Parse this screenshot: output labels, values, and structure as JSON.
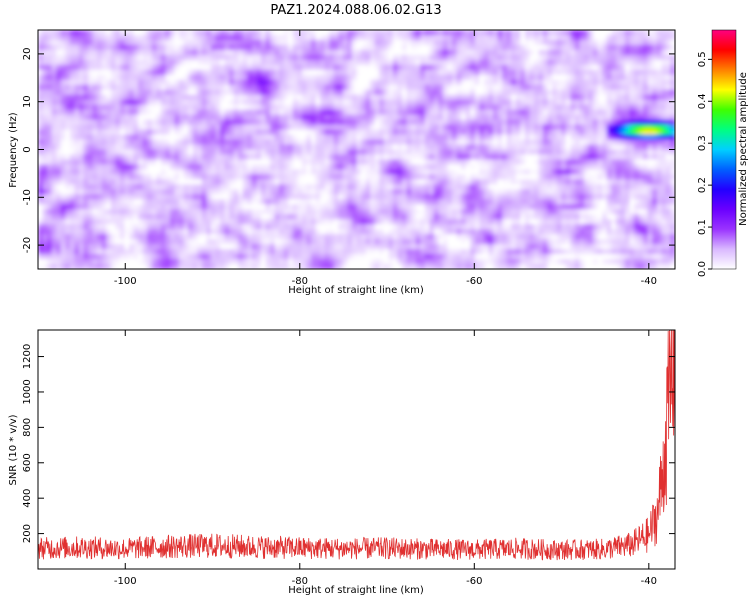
{
  "title": "PAZ1.2024.088.06.02.G13",
  "chart_data": [
    {
      "type": "heatmap",
      "xlabel": "Height of straight line (km)",
      "ylabel": "Frequency (Hz)",
      "xlim": [
        -110,
        -37
      ],
      "ylim": [
        -25,
        25
      ],
      "xticks": [
        -100,
        -80,
        -60,
        -40
      ],
      "yticks": [
        -20,
        -10,
        0,
        10,
        20
      ],
      "grid": false,
      "colorbar": {
        "label": "Normalized spectral amplitude",
        "range": [
          0.0,
          0.57
        ],
        "ticks": [
          0.0,
          0.1,
          0.2,
          0.3,
          0.4,
          0.5
        ],
        "colormap": [
          "#ffffff",
          "#d9b8ff",
          "#9a33ff",
          "#6a00ff",
          "#2200ff",
          "#0060ff",
          "#00d0ff",
          "#00ff80",
          "#40ff00",
          "#ffff00",
          "#ff8000",
          "#ff0000",
          "#ff0080"
        ]
      },
      "features": [
        {
          "note_free_blob": true,
          "x": -40,
          "y": 4,
          "value": 0.45
        }
      ]
    },
    {
      "type": "line",
      "xlabel": "Height of straight line (km)",
      "ylabel": "SNR (10 * v/v)",
      "xlim": [
        -110,
        -37
      ],
      "ylim": [
        0,
        1350
      ],
      "xticks": [
        -100,
        -80,
        -60,
        -40
      ],
      "yticks": [
        200,
        400,
        600,
        800,
        1000,
        1200
      ],
      "grid": false,
      "color": "#e03030",
      "series": [
        {
          "x": [
            -110,
            -105,
            -100,
            -95,
            -90,
            -85,
            -80,
            -75,
            -70,
            -65,
            -60,
            -55,
            -50,
            -45,
            -42,
            -40,
            -39,
            -38.5,
            -38,
            -37.5,
            -37.2
          ],
          "values": [
            120,
            125,
            118,
            130,
            135,
            128,
            122,
            118,
            120,
            115,
            112,
            118,
            110,
            115,
            140,
            200,
            320,
            520,
            780,
            1050,
            1330
          ]
        }
      ]
    }
  ]
}
